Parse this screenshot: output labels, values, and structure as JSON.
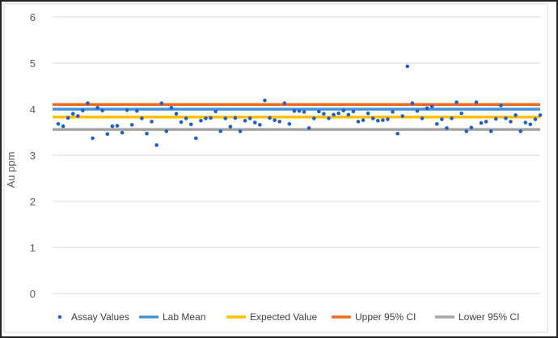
{
  "chart_data": {
    "type": "scatter",
    "title": "",
    "xlabel": "",
    "ylabel": "Au ppm",
    "ylim": [
      0,
      6
    ],
    "yticks": [
      "0",
      "1",
      "2",
      "3",
      "4",
      "5",
      "6"
    ],
    "grid": true,
    "legend_position": "bottom",
    "series": [
      {
        "name": "Assay Values",
        "kind": "points",
        "color": "#1f5fc8",
        "values": [
          3.68,
          3.63,
          3.81,
          3.9,
          3.85,
          3.97,
          4.13,
          3.37,
          4.03,
          3.97,
          3.46,
          3.63,
          3.64,
          3.49,
          3.98,
          3.66,
          3.96,
          3.8,
          3.47,
          3.73,
          3.22,
          4.13,
          3.52,
          4.03,
          3.9,
          3.72,
          3.8,
          3.67,
          3.37,
          3.75,
          3.8,
          3.81,
          3.95,
          3.52,
          3.8,
          3.62,
          3.81,
          3.52,
          3.75,
          3.8,
          3.71,
          3.66,
          4.19,
          3.81,
          3.76,
          3.73,
          4.13,
          3.68,
          3.96,
          3.96,
          3.94,
          3.59,
          3.8,
          3.95,
          3.9,
          3.8,
          3.88,
          3.91,
          3.97,
          3.88,
          3.95,
          3.73,
          3.76,
          3.91,
          3.8,
          3.75,
          3.76,
          3.78,
          3.94,
          3.47,
          3.85,
          4.93,
          4.13,
          3.96,
          3.8,
          4.02,
          4.06,
          3.68,
          3.78,
          3.59,
          3.8,
          4.15,
          3.91,
          3.52,
          3.6,
          4.15,
          3.7,
          3.73,
          3.52,
          3.79,
          4.08,
          3.8,
          3.73,
          3.87,
          3.52,
          3.71,
          3.67,
          3.78,
          3.87
        ]
      },
      {
        "name": "Lab Mean",
        "kind": "hline",
        "value": 4.0,
        "color": "#4a90d9"
      },
      {
        "name": "Expected Value",
        "kind": "hline",
        "value": 3.83,
        "color": "#ffc000"
      },
      {
        "name": "Upper 95% CI",
        "kind": "hline",
        "value": 4.1,
        "color": "#ed6a1e"
      },
      {
        "name": "Lower 95% CI",
        "kind": "hline",
        "value": 3.56,
        "color": "#a5a5a5"
      }
    ]
  }
}
